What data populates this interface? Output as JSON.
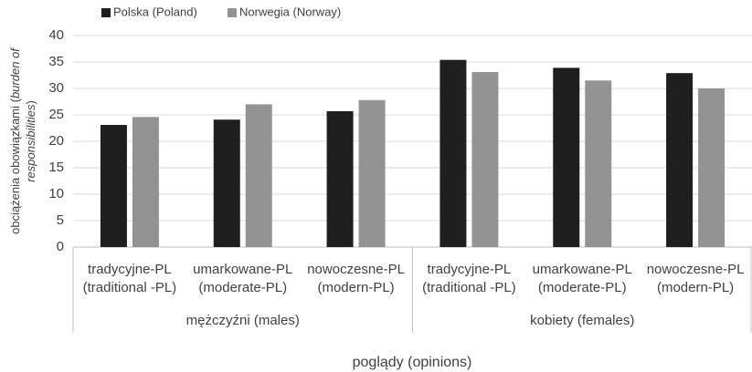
{
  "chart_data": {
    "type": "bar",
    "y_label": [
      [
        {
          "text": "obciążenia obowiązkami (",
          "italic": false
        },
        {
          "text": "burden of",
          "italic": true
        }
      ],
      [
        {
          "text": "responsibilities",
          "italic": true
        },
        {
          "text": ")",
          "italic": false
        }
      ]
    ],
    "x_label": "poglądy (opinions)",
    "groups": [
      {
        "label": "mężczyźni (males)",
        "categories": [
          [
            "tradycyjne-PL",
            "(traditional -PL)"
          ],
          [
            "umarkowane-PL",
            "(moderate-PL)"
          ],
          [
            "nowoczesne-PL",
            "(modern-PL)"
          ]
        ]
      },
      {
        "label": "kobiety (females)",
        "categories": [
          [
            "tradycyjne-PL",
            "(traditional -PL)"
          ],
          [
            "umarkowane-PL",
            "(moderate-PL)"
          ],
          [
            "nowoczesne-PL",
            "(modern-PL)"
          ]
        ]
      }
    ],
    "series": [
      {
        "name": "Polska (Poland)",
        "color": "#1f1f1f",
        "values": [
          23.1,
          24.1,
          25.7,
          35.4,
          33.9,
          32.9
        ]
      },
      {
        "name": "Norwegia (Norway)",
        "color": "#939393",
        "values": [
          24.6,
          27.0,
          27.8,
          33.1,
          31.5,
          30.0
        ]
      }
    ],
    "ylim": [
      0,
      40
    ],
    "yticks": [
      0,
      5,
      10,
      15,
      20,
      25,
      30,
      35,
      40
    ],
    "grid": true,
    "legend": "top-left"
  }
}
